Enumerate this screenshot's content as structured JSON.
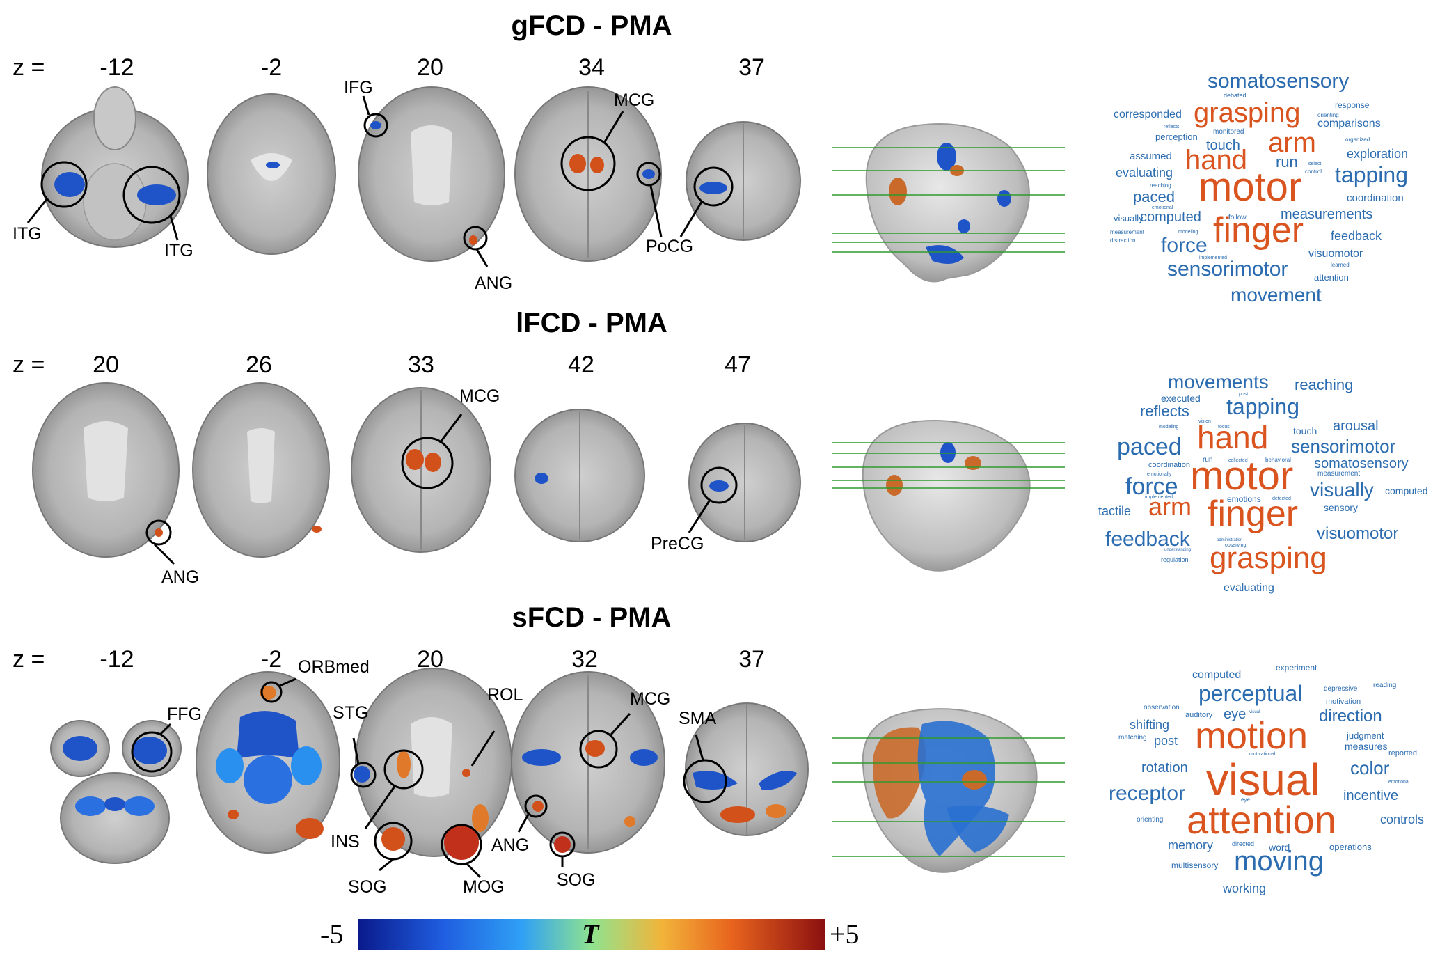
{
  "panels": [
    {
      "title": "gFCD - PMA",
      "z_prefix": "z =",
      "z_values": [
        "-12",
        "-2",
        "20",
        "34",
        "37"
      ],
      "region_labels": [
        "ITG",
        "ITG",
        "IFG",
        "ANG",
        "MCG",
        "PoCG"
      ]
    },
    {
      "title": "lFCD - PMA",
      "z_prefix": "z =",
      "z_values": [
        "20",
        "26",
        "33",
        "42",
        "47"
      ],
      "region_labels": [
        "ANG",
        "MCG",
        "PreCG"
      ]
    },
    {
      "title": "sFCD - PMA",
      "z_prefix": "z =",
      "z_values": [
        "-12",
        "-2",
        "20",
        "32",
        "37"
      ],
      "region_labels": [
        "FFG",
        "ORBmed",
        "STG",
        "INS",
        "SOG",
        "ROL",
        "MOG",
        "ANG",
        "SOG",
        "MCG",
        "SMA"
      ]
    }
  ],
  "wordclouds": [
    {
      "words": [
        {
          "t": "somatosensory",
          "c": "blue"
        },
        {
          "t": "debated",
          "c": "blue"
        },
        {
          "t": "response",
          "c": "blue"
        },
        {
          "t": "corresponded",
          "c": "blue"
        },
        {
          "t": "grasping",
          "c": "orange"
        },
        {
          "t": "orienting",
          "c": "blue"
        },
        {
          "t": "reflects",
          "c": "blue"
        },
        {
          "t": "comparisons",
          "c": "blue"
        },
        {
          "t": "perception",
          "c": "blue"
        },
        {
          "t": "monitored",
          "c": "blue"
        },
        {
          "t": "arm",
          "c": "orange"
        },
        {
          "t": "organized",
          "c": "blue"
        },
        {
          "t": "touch",
          "c": "blue"
        },
        {
          "t": "assumed",
          "c": "blue"
        },
        {
          "t": "hand",
          "c": "orange"
        },
        {
          "t": "run",
          "c": "blue"
        },
        {
          "t": "exploration",
          "c": "blue"
        },
        {
          "t": "select",
          "c": "blue"
        },
        {
          "t": "evaluating",
          "c": "blue"
        },
        {
          "t": "control",
          "c": "blue"
        },
        {
          "t": "tapping",
          "c": "blue"
        },
        {
          "t": "reaching",
          "c": "blue"
        },
        {
          "t": "motor",
          "c": "orange"
        },
        {
          "t": "paced",
          "c": "blue"
        },
        {
          "t": "coordination",
          "c": "blue"
        },
        {
          "t": "emotional",
          "c": "blue"
        },
        {
          "t": "computed",
          "c": "blue"
        },
        {
          "t": "follow",
          "c": "blue"
        },
        {
          "t": "measurements",
          "c": "blue"
        },
        {
          "t": "visually",
          "c": "blue"
        },
        {
          "t": "finger",
          "c": "orange"
        },
        {
          "t": "measurement",
          "c": "blue"
        },
        {
          "t": "modeling",
          "c": "blue"
        },
        {
          "t": "feedback",
          "c": "blue"
        },
        {
          "t": "distraction",
          "c": "blue"
        },
        {
          "t": "force",
          "c": "blue"
        },
        {
          "t": "visuomotor",
          "c": "blue"
        },
        {
          "t": "implemented",
          "c": "blue"
        },
        {
          "t": "learned",
          "c": "blue"
        },
        {
          "t": "sensorimotor",
          "c": "blue"
        },
        {
          "t": "attention",
          "c": "blue"
        },
        {
          "t": "movement",
          "c": "blue"
        }
      ]
    },
    {
      "words": [
        {
          "t": "movements",
          "c": "blue"
        },
        {
          "t": "reaching",
          "c": "blue"
        },
        {
          "t": "post",
          "c": "blue"
        },
        {
          "t": "executed",
          "c": "blue"
        },
        {
          "t": "reflects",
          "c": "blue"
        },
        {
          "t": "tapping",
          "c": "blue"
        },
        {
          "t": "vision",
          "c": "blue"
        },
        {
          "t": "arousal",
          "c": "blue"
        },
        {
          "t": "modeling",
          "c": "blue"
        },
        {
          "t": "focus",
          "c": "blue"
        },
        {
          "t": "touch",
          "c": "blue"
        },
        {
          "t": "hand",
          "c": "orange"
        },
        {
          "t": "paced",
          "c": "blue"
        },
        {
          "t": "sensorimotor",
          "c": "blue"
        },
        {
          "t": "run",
          "c": "blue"
        },
        {
          "t": "collected",
          "c": "blue"
        },
        {
          "t": "behavioral",
          "c": "blue"
        },
        {
          "t": "somatosensory",
          "c": "blue"
        },
        {
          "t": "coordination",
          "c": "blue"
        },
        {
          "t": "measurement",
          "c": "blue"
        },
        {
          "t": "emotionally",
          "c": "blue"
        },
        {
          "t": "motor",
          "c": "orange"
        },
        {
          "t": "force",
          "c": "blue"
        },
        {
          "t": "visually",
          "c": "blue"
        },
        {
          "t": "computed",
          "c": "blue"
        },
        {
          "t": "implemented",
          "c": "blue"
        },
        {
          "t": "emotions",
          "c": "blue"
        },
        {
          "t": "detected",
          "c": "blue"
        },
        {
          "t": "tactile",
          "c": "blue"
        },
        {
          "t": "arm",
          "c": "orange"
        },
        {
          "t": "finger",
          "c": "orange"
        },
        {
          "t": "sensory",
          "c": "blue"
        },
        {
          "t": "administration",
          "c": "blue"
        },
        {
          "t": "feedback",
          "c": "blue"
        },
        {
          "t": "visuomotor",
          "c": "blue"
        },
        {
          "t": "understanding",
          "c": "blue"
        },
        {
          "t": "observing",
          "c": "blue"
        },
        {
          "t": "regulation",
          "c": "blue"
        },
        {
          "t": "grasping",
          "c": "orange"
        },
        {
          "t": "evaluating",
          "c": "blue"
        }
      ]
    },
    {
      "words": [
        {
          "t": "experiment",
          "c": "blue"
        },
        {
          "t": "computed",
          "c": "blue"
        },
        {
          "t": "reading",
          "c": "blue"
        },
        {
          "t": "depressive",
          "c": "blue"
        },
        {
          "t": "perceptual",
          "c": "blue"
        },
        {
          "t": "motivation",
          "c": "blue"
        },
        {
          "t": "observation",
          "c": "blue"
        },
        {
          "t": "auditory",
          "c": "blue"
        },
        {
          "t": "eye",
          "c": "blue"
        },
        {
          "t": "visual",
          "c": "blue"
        },
        {
          "t": "direction",
          "c": "blue"
        },
        {
          "t": "shifting",
          "c": "blue"
        },
        {
          "t": "judgment",
          "c": "blue"
        },
        {
          "t": "matching",
          "c": "blue"
        },
        {
          "t": "post",
          "c": "blue"
        },
        {
          "t": "motion",
          "c": "orange"
        },
        {
          "t": "measures",
          "c": "blue"
        },
        {
          "t": "reported",
          "c": "blue"
        },
        {
          "t": "motivational",
          "c": "blue"
        },
        {
          "t": "rotation",
          "c": "blue"
        },
        {
          "t": "color",
          "c": "blue"
        },
        {
          "t": "visual",
          "c": "orange"
        },
        {
          "t": "emotional",
          "c": "blue"
        },
        {
          "t": "receptor",
          "c": "blue"
        },
        {
          "t": "incentive",
          "c": "blue"
        },
        {
          "t": "eye",
          "c": "blue"
        },
        {
          "t": "orienting",
          "c": "blue"
        },
        {
          "t": "attention",
          "c": "orange"
        },
        {
          "t": "controls",
          "c": "blue"
        },
        {
          "t": "memory",
          "c": "blue"
        },
        {
          "t": "directed",
          "c": "blue"
        },
        {
          "t": "word",
          "c": "blue"
        },
        {
          "t": "operations",
          "c": "blue"
        },
        {
          "t": "multisensory",
          "c": "blue"
        },
        {
          "t": "moving",
          "c": "blue"
        },
        {
          "t": "working",
          "c": "blue"
        }
      ]
    }
  ],
  "colorbar": {
    "min_label": "-5",
    "max_label": "+5",
    "variable": "T"
  },
  "colors": {
    "blue": "#2b6cb0",
    "orange": "#d9541e",
    "activation_blue": "#1f54c8",
    "activation_orange": "#d2501a"
  }
}
